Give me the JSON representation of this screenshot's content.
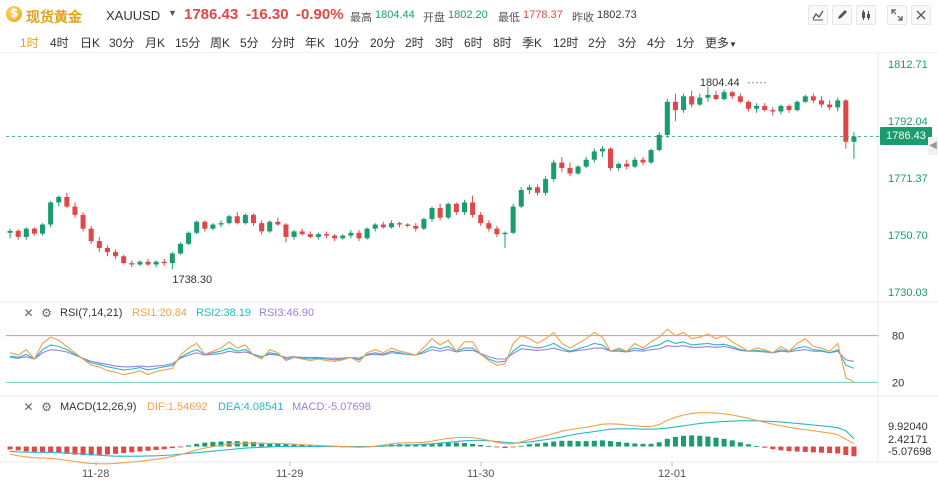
{
  "header": {
    "name": "现货黄金",
    "code": "XAUUSD",
    "price": "1786.43",
    "change": "-16.30",
    "change_pct": "-0.90%",
    "stats": [
      {
        "label": "最高",
        "value": "1804.44",
        "tone": "green"
      },
      {
        "label": "开盘",
        "value": "1802.20",
        "tone": "green"
      },
      {
        "label": "最低",
        "value": "1778.37",
        "tone": "red"
      },
      {
        "label": "昨收",
        "value": "1802.73",
        "tone": "gray"
      }
    ],
    "tools": [
      "chart-type-icon",
      "draw-pen-icon",
      "candle-style-icon",
      "expand-icon",
      "close-icon"
    ]
  },
  "periods": {
    "items": [
      "1时",
      "4时",
      "日K",
      "30分",
      "月K",
      "15分",
      "周K",
      "5分",
      "分时",
      "年K",
      "10分",
      "20分",
      "2时",
      "3时",
      "6时",
      "8时",
      "季K",
      "12时",
      "2分",
      "3分",
      "4分",
      "1分",
      "更多"
    ],
    "active_index": 0
  },
  "colors": {
    "up": "#1a9c6e",
    "down": "#e04848",
    "accent": "#e3a216",
    "rsi1": "#f5a04a",
    "rsi2": "#29b8c8",
    "rsi3": "#9b7fd4",
    "dif": "#f5a04a",
    "dea": "#29b8c8",
    "macd": "#9b7fd4"
  },
  "price_axis": [
    "1812.71",
    "1792.04",
    "1771.37",
    "1750.70",
    "1730.03"
  ],
  "current_price_tag": "1786.43",
  "annotations": {
    "high": "1804.44",
    "low": "1738.30"
  },
  "dates": [
    "11-28",
    "11-29",
    "11-30",
    "12-01"
  ],
  "rsi": {
    "title": "RSI(7,14,21)",
    "rsi1": "RSI1:20.84",
    "rsi2": "RSI2:38.19",
    "rsi3": "RSI3:46.90",
    "levels": [
      "80",
      "20"
    ]
  },
  "macd": {
    "title": "MACD(12,26,9)",
    "dif": "DIF:1.54692",
    "dea": "DEA:4.08541",
    "macd": "MACD:-5.07698",
    "axis": [
      "9.92040",
      "2.42171",
      "-5.07698"
    ]
  },
  "chart_data": {
    "type": "candlestick",
    "ylim": [
      1730.03,
      1812.71
    ],
    "candles": [
      [
        1751.5,
        1753.0,
        1749.5,
        1752.2
      ],
      [
        1752.2,
        1752.8,
        1749.0,
        1750.0
      ],
      [
        1750.0,
        1753.5,
        1749.0,
        1753.0
      ],
      [
        1753.0,
        1753.5,
        1750.5,
        1751.2
      ],
      [
        1751.2,
        1755.0,
        1750.5,
        1754.5
      ],
      [
        1754.5,
        1763.0,
        1753.5,
        1762.5
      ],
      [
        1762.5,
        1765.0,
        1761.0,
        1764.5
      ],
      [
        1764.5,
        1766.0,
        1760.5,
        1761.0
      ],
      [
        1761.0,
        1762.5,
        1757.0,
        1758.0
      ],
      [
        1758.0,
        1759.0,
        1752.0,
        1753.0
      ],
      [
        1753.0,
        1754.0,
        1747.5,
        1748.5
      ],
      [
        1748.5,
        1750.0,
        1744.5,
        1746.0
      ],
      [
        1746.0,
        1747.0,
        1743.0,
        1744.5
      ],
      [
        1744.5,
        1745.5,
        1742.0,
        1743.0
      ],
      [
        1743.0,
        1743.5,
        1740.0,
        1740.5
      ],
      [
        1740.5,
        1741.5,
        1739.0,
        1740.0
      ],
      [
        1740.0,
        1741.5,
        1739.5,
        1741.0
      ],
      [
        1741.0,
        1742.0,
        1739.5,
        1740.0
      ],
      [
        1740.0,
        1741.5,
        1739.0,
        1741.0
      ],
      [
        1741.0,
        1742.0,
        1739.5,
        1740.5
      ],
      [
        1740.5,
        1744.5,
        1738.3,
        1744.0
      ],
      [
        1744.0,
        1748.0,
        1743.5,
        1747.5
      ],
      [
        1747.5,
        1752.0,
        1747.0,
        1751.5
      ],
      [
        1751.5,
        1756.0,
        1751.0,
        1755.5
      ],
      [
        1755.5,
        1756.0,
        1752.0,
        1753.0
      ],
      [
        1753.0,
        1755.0,
        1752.5,
        1754.5
      ],
      [
        1754.5,
        1756.0,
        1753.5,
        1755.0
      ],
      [
        1755.0,
        1758.0,
        1754.5,
        1757.5
      ],
      [
        1757.5,
        1759.0,
        1754.5,
        1755.0
      ],
      [
        1755.0,
        1758.5,
        1754.5,
        1758.0
      ],
      [
        1758.0,
        1758.5,
        1754.0,
        1755.0
      ],
      [
        1755.0,
        1756.0,
        1751.0,
        1752.0
      ],
      [
        1752.0,
        1756.0,
        1751.5,
        1755.5
      ],
      [
        1755.5,
        1757.0,
        1754.0,
        1754.5
      ],
      [
        1754.5,
        1755.0,
        1748.0,
        1750.0
      ],
      [
        1750.0,
        1752.5,
        1749.0,
        1752.0
      ],
      [
        1752.0,
        1753.0,
        1750.5,
        1751.0
      ],
      [
        1751.0,
        1752.0,
        1749.5,
        1750.0
      ],
      [
        1750.0,
        1751.5,
        1749.0,
        1751.0
      ],
      [
        1751.0,
        1752.0,
        1749.5,
        1750.5
      ],
      [
        1750.5,
        1751.0,
        1748.5,
        1749.5
      ],
      [
        1749.5,
        1751.0,
        1749.0,
        1750.5
      ],
      [
        1750.5,
        1752.5,
        1749.5,
        1751.5
      ],
      [
        1751.5,
        1752.5,
        1748.5,
        1749.5
      ],
      [
        1749.5,
        1753.5,
        1749.0,
        1753.0
      ],
      [
        1753.0,
        1755.0,
        1752.0,
        1754.5
      ],
      [
        1754.5,
        1755.5,
        1753.0,
        1753.5
      ],
      [
        1753.5,
        1756.0,
        1753.0,
        1755.0
      ],
      [
        1755.0,
        1755.5,
        1753.5,
        1754.5
      ],
      [
        1754.5,
        1755.0,
        1753.5,
        1754.0
      ],
      [
        1754.0,
        1755.0,
        1752.0,
        1753.0
      ],
      [
        1753.0,
        1757.0,
        1752.5,
        1756.5
      ],
      [
        1756.5,
        1761.0,
        1755.5,
        1760.5
      ],
      [
        1760.5,
        1762.0,
        1756.0,
        1757.0
      ],
      [
        1757.0,
        1762.5,
        1756.5,
        1762.0
      ],
      [
        1762.0,
        1762.5,
        1758.0,
        1759.0
      ],
      [
        1759.0,
        1763.5,
        1758.0,
        1762.5
      ],
      [
        1762.5,
        1765.0,
        1757.0,
        1758.0
      ],
      [
        1758.0,
        1759.0,
        1754.0,
        1755.0
      ],
      [
        1755.0,
        1756.0,
        1752.0,
        1753.0
      ],
      [
        1753.0,
        1754.0,
        1750.0,
        1751.0
      ],
      [
        1751.0,
        1752.0,
        1746.0,
        1751.5
      ],
      [
        1751.5,
        1762.0,
        1751.0,
        1761.0
      ],
      [
        1761.0,
        1768.0,
        1760.5,
        1767.0
      ],
      [
        1767.0,
        1769.0,
        1765.5,
        1768.0
      ],
      [
        1768.0,
        1769.0,
        1765.0,
        1766.0
      ],
      [
        1766.0,
        1772.0,
        1765.0,
        1771.0
      ],
      [
        1771.0,
        1778.0,
        1770.0,
        1777.0
      ],
      [
        1777.0,
        1779.0,
        1773.5,
        1775.0
      ],
      [
        1775.0,
        1777.0,
        1772.0,
        1773.0
      ],
      [
        1773.0,
        1776.0,
        1772.5,
        1775.5
      ],
      [
        1775.5,
        1779.0,
        1775.0,
        1778.0
      ],
      [
        1778.0,
        1782.0,
        1777.0,
        1781.0
      ],
      [
        1781.0,
        1783.0,
        1779.0,
        1782.0
      ],
      [
        1782.0,
        1782.5,
        1774.0,
        1775.0
      ],
      [
        1775.0,
        1777.0,
        1774.0,
        1776.5
      ],
      [
        1776.5,
        1778.0,
        1774.5,
        1775.5
      ],
      [
        1775.5,
        1779.0,
        1775.0,
        1778.0
      ],
      [
        1778.0,
        1779.0,
        1776.0,
        1777.0
      ],
      [
        1777.0,
        1782.0,
        1776.5,
        1781.5
      ],
      [
        1781.5,
        1788.0,
        1781.0,
        1787.0
      ],
      [
        1787.0,
        1800.0,
        1786.0,
        1799.0
      ],
      [
        1799.0,
        1802.0,
        1792.0,
        1796.0
      ],
      [
        1796.0,
        1802.0,
        1795.0,
        1801.0
      ],
      [
        1801.0,
        1803.0,
        1797.0,
        1798.0
      ],
      [
        1798.0,
        1802.0,
        1797.5,
        1800.5
      ],
      [
        1800.5,
        1804.44,
        1799.0,
        1801.5
      ],
      [
        1801.5,
        1803.0,
        1799.5,
        1800.0
      ],
      [
        1800.0,
        1803.5,
        1799.5,
        1802.5
      ],
      [
        1802.5,
        1803.0,
        1800.0,
        1801.0
      ],
      [
        1801.0,
        1802.0,
        1798.5,
        1799.0
      ],
      [
        1799.0,
        1799.5,
        1795.5,
        1796.5
      ],
      [
        1796.5,
        1798.5,
        1795.0,
        1797.5
      ],
      [
        1797.5,
        1798.5,
        1795.5,
        1796.0
      ],
      [
        1796.0,
        1797.0,
        1794.0,
        1795.5
      ],
      [
        1795.5,
        1798.0,
        1794.5,
        1797.5
      ],
      [
        1797.5,
        1798.0,
        1795.0,
        1796.0
      ],
      [
        1796.0,
        1799.5,
        1795.5,
        1799.0
      ],
      [
        1799.0,
        1801.5,
        1798.5,
        1801.0
      ],
      [
        1801.0,
        1802.0,
        1798.5,
        1799.5
      ],
      [
        1799.5,
        1801.0,
        1797.0,
        1798.0
      ],
      [
        1798.0,
        1799.5,
        1796.0,
        1797.0
      ],
      [
        1797.0,
        1800.5,
        1795.5,
        1799.5
      ],
      [
        1799.5,
        1800.0,
        1782.0,
        1784.5
      ],
      [
        1784.5,
        1788.0,
        1778.37,
        1786.43
      ]
    ],
    "rsi1": [
      58,
      55,
      62,
      50,
      70,
      78,
      74,
      66,
      58,
      50,
      42,
      40,
      35,
      33,
      30,
      32,
      35,
      30,
      34,
      36,
      38,
      55,
      64,
      70,
      56,
      60,
      64,
      72,
      64,
      68,
      55,
      50,
      62,
      58,
      48,
      52,
      50,
      48,
      50,
      48,
      47,
      49,
      52,
      46,
      58,
      62,
      58,
      64,
      60,
      58,
      55,
      65,
      76,
      68,
      74,
      60,
      72,
      72,
      56,
      48,
      42,
      44,
      70,
      80,
      76,
      70,
      76,
      84,
      70,
      64,
      70,
      76,
      84,
      78,
      60,
      64,
      60,
      70,
      64,
      72,
      78,
      88,
      80,
      84,
      76,
      78,
      82,
      76,
      80,
      72,
      66,
      60,
      64,
      62,
      58,
      66,
      60,
      70,
      76,
      66,
      64,
      60,
      70,
      26,
      20.84
    ],
    "rsi2": [
      54,
      52,
      56,
      50,
      62,
      68,
      66,
      62,
      56,
      50,
      45,
      43,
      40,
      38,
      36,
      37,
      39,
      36,
      38,
      40,
      42,
      52,
      58,
      62,
      56,
      58,
      60,
      64,
      60,
      62,
      56,
      52,
      58,
      56,
      50,
      52,
      51,
      50,
      51,
      50,
      49,
      50,
      52,
      49,
      56,
      58,
      56,
      60,
      58,
      56,
      55,
      60,
      66,
      63,
      66,
      60,
      64,
      64,
      56,
      50,
      46,
      47,
      60,
      68,
      66,
      64,
      66,
      70,
      64,
      60,
      63,
      66,
      70,
      68,
      60,
      62,
      60,
      64,
      62,
      66,
      68,
      74,
      70,
      72,
      68,
      69,
      70,
      68,
      69,
      66,
      62,
      60,
      61,
      60,
      58,
      62,
      60,
      64,
      66,
      62,
      61,
      58,
      62,
      42,
      38.19
    ],
    "rsi3": [
      52,
      51,
      53,
      50,
      58,
      62,
      61,
      59,
      55,
      51,
      47,
      45,
      43,
      41,
      40,
      40,
      41,
      40,
      41,
      42,
      44,
      51,
      55,
      58,
      55,
      56,
      57,
      60,
      58,
      59,
      56,
      53,
      56,
      55,
      52,
      53,
      52,
      52,
      52,
      51,
      51,
      51,
      52,
      51,
      55,
      56,
      55,
      58,
      57,
      56,
      55,
      58,
      62,
      60,
      62,
      59,
      61,
      61,
      57,
      53,
      50,
      50,
      57,
      63,
      62,
      61,
      62,
      64,
      61,
      59,
      61,
      62,
      64,
      64,
      60,
      60,
      59,
      61,
      60,
      62,
      63,
      67,
      66,
      67,
      65,
      65,
      66,
      65,
      66,
      64,
      61,
      60,
      60,
      59,
      58,
      60,
      59,
      61,
      62,
      60,
      60,
      58,
      60,
      49,
      46.9
    ],
    "macd_hist": [
      -1.5,
      -2.0,
      -2.5,
      -2.8,
      -3.0,
      -3.2,
      -3.4,
      -3.8,
      -4.2,
      -4.5,
      -4.6,
      -4.5,
      -4.2,
      -3.8,
      -3.4,
      -3.0,
      -2.6,
      -2.2,
      -1.8,
      -1.4,
      -0.8,
      -0.2,
      0.6,
      1.4,
      2.0,
      2.4,
      2.6,
      2.8,
      2.8,
      2.6,
      2.4,
      2.0,
      1.8,
      1.6,
      1.4,
      1.2,
      1.0,
      0.8,
      0.6,
      0.4,
      0.2,
      0.0,
      -0.2,
      -0.4,
      -0.2,
      0.2,
      0.6,
      1.0,
      1.2,
      1.2,
      1.0,
      1.0,
      1.4,
      1.8,
      2.0,
      2.0,
      1.8,
      1.4,
      0.8,
      0.2,
      -0.4,
      -0.8,
      -0.4,
      0.4,
      1.2,
      1.6,
      2.0,
      2.6,
      3.0,
      3.0,
      2.8,
      2.8,
      3.0,
      3.2,
      2.8,
      2.4,
      2.0,
      1.6,
      1.4,
      1.4,
      2.2,
      4.0,
      5.0,
      5.6,
      5.8,
      5.6,
      5.2,
      4.6,
      4.0,
      3.2,
      2.2,
      1.2,
      0.2,
      -0.6,
      -1.4,
      -2.0,
      -2.4,
      -2.6,
      -2.8,
      -3.0,
      -3.2,
      -3.4,
      -3.6,
      -4.4,
      -5.07698
    ],
    "macd_dif": [
      -4.0,
      -4.8,
      -5.4,
      -5.8,
      -6.0,
      -6.2,
      -6.6,
      -7.2,
      -7.8,
      -8.4,
      -8.8,
      -9.0,
      -9.0,
      -8.8,
      -8.4,
      -8.0,
      -7.6,
      -7.1,
      -6.6,
      -6.0,
      -5.2,
      -4.2,
      -3.0,
      -1.8,
      -0.8,
      0.0,
      0.6,
      1.2,
      1.6,
      1.8,
      1.8,
      1.6,
      1.6,
      1.6,
      1.4,
      1.2,
      1.0,
      0.8,
      0.6,
      0.4,
      0.2,
      0.0,
      -0.2,
      -0.4,
      -0.2,
      0.2,
      0.8,
      1.4,
      1.8,
      2.0,
      2.0,
      2.2,
      2.8,
      3.6,
      4.2,
      4.6,
      4.8,
      4.6,
      4.0,
      3.2,
      2.2,
      1.4,
      1.4,
      2.4,
      3.6,
      4.6,
      5.6,
      6.8,
      8.0,
      8.8,
      9.4,
      10.0,
      10.8,
      11.6,
      11.8,
      11.6,
      11.2,
      10.8,
      10.4,
      10.4,
      11.4,
      13.6,
      15.2,
      16.4,
      17.2,
      17.6,
      17.6,
      17.4,
      17.0,
      16.4,
      15.6,
      14.6,
      13.6,
      12.6,
      11.6,
      10.8,
      10.0,
      9.4,
      8.8,
      8.2,
      7.6,
      7.0,
      6.2,
      3.8,
      1.54692
    ],
    "macd_dea": [
      -2.5,
      -2.8,
      -2.9,
      -3.0,
      -3.0,
      -3.0,
      -3.2,
      -3.4,
      -3.6,
      -3.9,
      -4.2,
      -4.5,
      -4.8,
      -5.0,
      -5.0,
      -5.0,
      -5.0,
      -4.9,
      -4.8,
      -4.6,
      -4.4,
      -4.0,
      -3.6,
      -3.2,
      -2.8,
      -2.4,
      -2.0,
      -1.6,
      -1.2,
      -0.8,
      -0.6,
      -0.4,
      -0.2,
      0.0,
      0.0,
      0.0,
      0.0,
      0.0,
      0.0,
      0.0,
      0.0,
      0.0,
      0.0,
      0.0,
      0.0,
      0.0,
      0.2,
      0.4,
      0.6,
      0.8,
      1.0,
      1.2,
      1.4,
      1.8,
      2.2,
      2.6,
      3.0,
      3.2,
      3.2,
      3.0,
      2.6,
      2.2,
      1.8,
      2.0,
      2.4,
      3.0,
      3.6,
      4.2,
      5.0,
      5.8,
      6.6,
      7.2,
      7.8,
      8.4,
      9.0,
      9.2,
      9.2,
      9.2,
      9.0,
      9.0,
      9.2,
      9.6,
      10.2,
      10.8,
      11.4,
      12.0,
      12.4,
      12.8,
      13.0,
      13.2,
      13.4,
      13.4,
      13.4,
      13.2,
      13.0,
      12.8,
      12.4,
      12.0,
      11.6,
      11.2,
      10.8,
      10.4,
      9.8,
      8.2,
      4.08541
    ]
  }
}
